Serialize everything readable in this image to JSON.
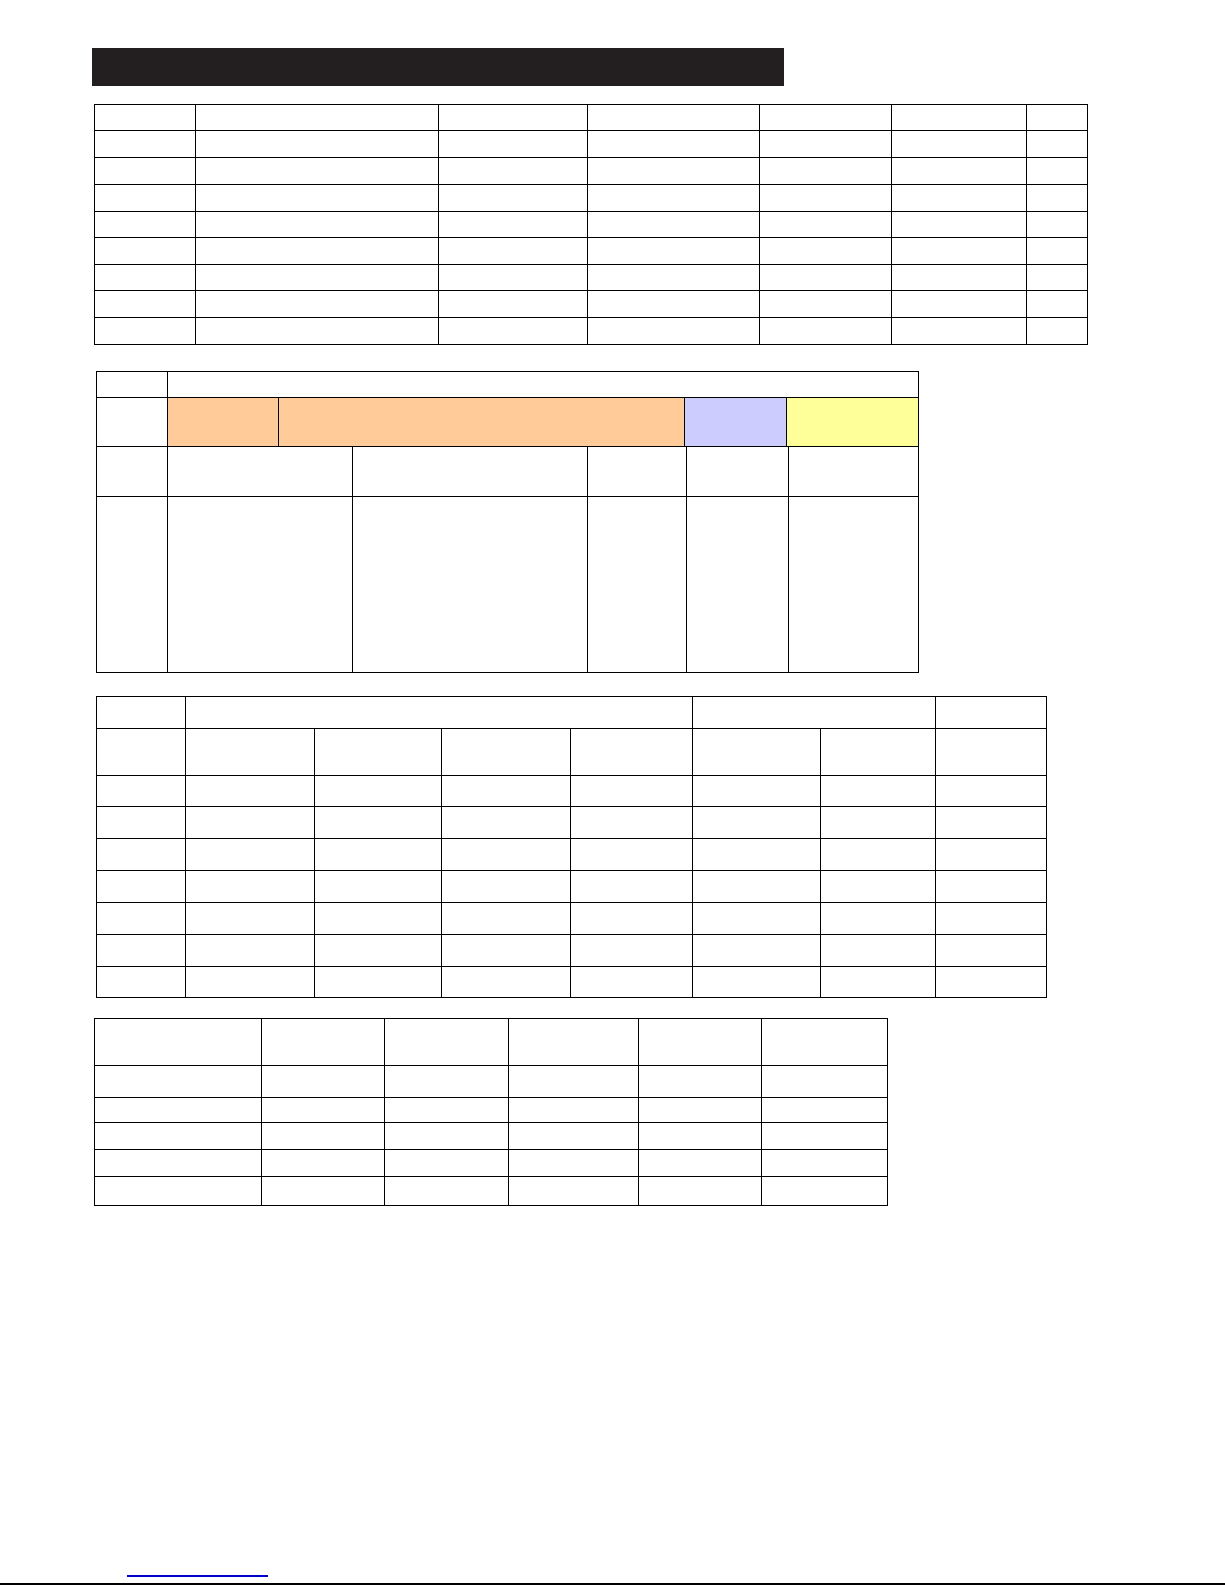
{
  "header_bar": {
    "color": "#231f20"
  },
  "tables": [
    {
      "name": "table-1",
      "fills": {}
    },
    {
      "name": "table-2",
      "fills": {
        "orange": "#ffcc99",
        "blue": "#ccccff",
        "yellow": "#ffff99"
      }
    },
    {
      "name": "table-3",
      "fills": {}
    },
    {
      "name": "table-4",
      "fills": {}
    }
  ],
  "footer": {
    "link_color": "#0000cc",
    "rule_color": "#000000"
  }
}
